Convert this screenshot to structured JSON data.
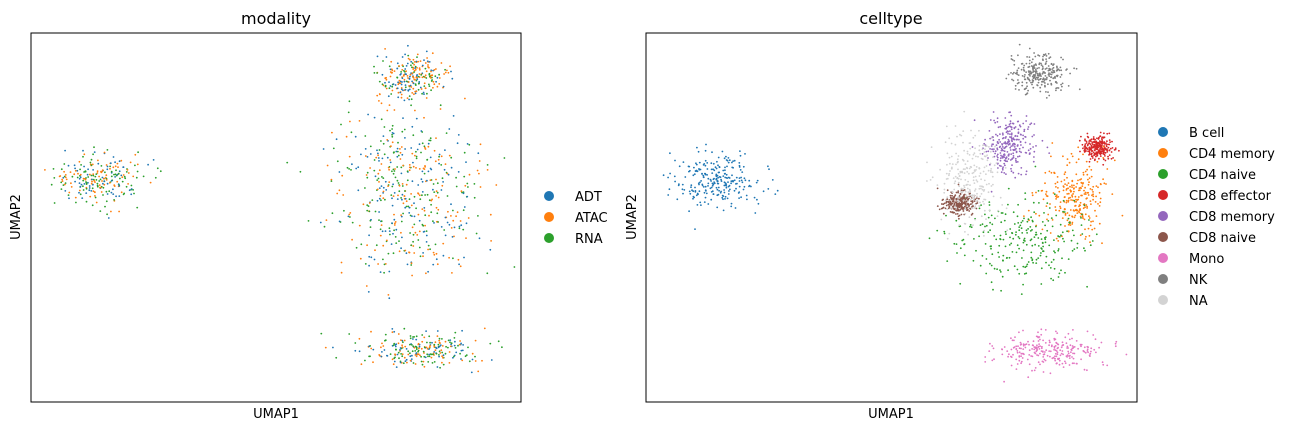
{
  "chart_data": [
    {
      "type": "scatter",
      "title": "modality",
      "xlabel": "UMAP1",
      "ylabel": "UMAP2",
      "xticks": "none",
      "yticks": "none",
      "grid": false,
      "legend_placement": "right",
      "legend": [
        {
          "label": "ADT",
          "color": "#1f77b4"
        },
        {
          "label": "ATAC",
          "color": "#ff7f0e"
        },
        {
          "label": "RNA",
          "color": "#2ca02c"
        }
      ],
      "clusters": [
        {
          "cx": 0.14,
          "cy": 0.4,
          "rx": 0.09,
          "ry": 0.07,
          "mix": {
            "ADT": 0.3,
            "ATAC": 0.35,
            "RNA": 0.35
          }
        },
        {
          "cx": 0.78,
          "cy": 0.12,
          "rx": 0.07,
          "ry": 0.06,
          "mix": {
            "ADT": 0.3,
            "ATAC": 0.5,
            "RNA": 0.2
          }
        },
        {
          "cx": 0.76,
          "cy": 0.35,
          "rx": 0.14,
          "ry": 0.15,
          "mix": {
            "ADT": 0.3,
            "ATAC": 0.35,
            "RNA": 0.35
          }
        },
        {
          "cx": 0.78,
          "cy": 0.52,
          "rx": 0.16,
          "ry": 0.16,
          "mix": {
            "ADT": 0.3,
            "ATAC": 0.35,
            "RNA": 0.35
          }
        },
        {
          "cx": 0.79,
          "cy": 0.86,
          "rx": 0.13,
          "ry": 0.05,
          "mix": {
            "ADT": 0.3,
            "ATAC": 0.35,
            "RNA": 0.35
          }
        }
      ]
    },
    {
      "type": "scatter",
      "title": "celltype",
      "xlabel": "UMAP1",
      "ylabel": "UMAP2",
      "xticks": "none",
      "yticks": "none",
      "grid": false,
      "legend_placement": "right",
      "legend": [
        {
          "label": "B cell",
          "color": "#1f77b4"
        },
        {
          "label": "CD4 memory",
          "color": "#ff7f0e"
        },
        {
          "label": "CD4 naive",
          "color": "#2ca02c"
        },
        {
          "label": "CD8 effector",
          "color": "#d62728"
        },
        {
          "label": "CD8 memory",
          "color": "#9467bd"
        },
        {
          "label": "CD8 naive",
          "color": "#8c564b"
        },
        {
          "label": "Mono",
          "color": "#e377c2"
        },
        {
          "label": "NK",
          "color": "#7f7f7f"
        },
        {
          "label": "NA",
          "color": "#d3d3d3"
        }
      ],
      "clusters": [
        {
          "cx": 0.14,
          "cy": 0.4,
          "rx": 0.09,
          "ry": 0.07,
          "label": "B cell"
        },
        {
          "cx": 0.8,
          "cy": 0.11,
          "rx": 0.06,
          "ry": 0.05,
          "label": "NK"
        },
        {
          "cx": 0.74,
          "cy": 0.3,
          "rx": 0.05,
          "ry": 0.08,
          "label": "CD8 memory"
        },
        {
          "cx": 0.92,
          "cy": 0.31,
          "rx": 0.03,
          "ry": 0.03,
          "label": "CD8 effector"
        },
        {
          "cx": 0.87,
          "cy": 0.45,
          "rx": 0.07,
          "ry": 0.1,
          "label": "CD4 memory"
        },
        {
          "cx": 0.76,
          "cy": 0.56,
          "rx": 0.14,
          "ry": 0.12,
          "label": "CD4 naive"
        },
        {
          "cx": 0.64,
          "cy": 0.46,
          "rx": 0.03,
          "ry": 0.03,
          "label": "CD8 naive"
        },
        {
          "cx": 0.82,
          "cy": 0.86,
          "rx": 0.12,
          "ry": 0.05,
          "label": "Mono"
        },
        {
          "cx": 0.66,
          "cy": 0.4,
          "rx": 0.06,
          "ry": 0.12,
          "label": "NA"
        }
      ]
    }
  ]
}
